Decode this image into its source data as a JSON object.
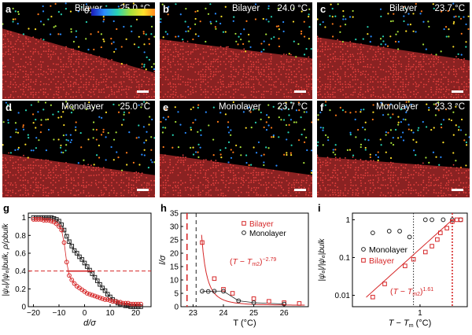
{
  "colorbar": {
    "min_label": "0",
    "max_label": "1",
    "colors": [
      "#1a1ab8",
      "#2a8cff",
      "#28d4b4",
      "#a8e03a",
      "#ffe02a",
      "#ff7a1a",
      "#d21e1e"
    ]
  },
  "panels": [
    {
      "id": "a",
      "label": "a",
      "title": "Bilayer",
      "temp": "25.0 °C",
      "has_colorbar": true,
      "boundary": [
        0.27,
        0.73
      ]
    },
    {
      "id": "b",
      "label": "b",
      "title": "Bilayer",
      "temp": "24.0 °C",
      "has_colorbar": false,
      "boundary": [
        0.38,
        0.58
      ]
    },
    {
      "id": "c",
      "label": "c",
      "title": "Bilayer",
      "temp": "23.7 °C",
      "has_colorbar": false,
      "boundary": [
        0.36,
        0.6
      ]
    },
    {
      "id": "d",
      "label": "d",
      "title": "Monolayer",
      "temp": "25.0 °C",
      "has_colorbar": false,
      "boundary": [
        0.55,
        0.77
      ]
    },
    {
      "id": "e",
      "label": "e",
      "title": "Monolayer",
      "temp": "23.7 °C",
      "has_colorbar": false,
      "boundary": [
        0.55,
        0.77
      ]
    },
    {
      "id": "f",
      "label": "f",
      "title": "Monolayer",
      "temp": "23.3 °C",
      "has_colorbar": false,
      "boundary": [
        0.58,
        0.7
      ]
    }
  ],
  "chart_data": [
    {
      "panel": "g",
      "type": "scatter",
      "xlabel": "d/σ",
      "ylabel": "|ψ6|/|ψ6|bulk, ρ/ρbulk",
      "xlim": [
        -22,
        26
      ],
      "ylim": [
        0,
        1.05
      ],
      "xticks": [
        "−20",
        "−10",
        "0",
        "10",
        "20"
      ],
      "xtick_values": [
        -20,
        -10,
        0,
        10,
        20
      ],
      "yticks": [
        "0",
        "0.2",
        "0.4",
        "0.6",
        "0.8",
        "1"
      ],
      "ytick_values": [
        0,
        0.2,
        0.4,
        0.6,
        0.8,
        1.0
      ],
      "hline": 0.4,
      "series": [
        {
          "marker": "square",
          "color": "#222222",
          "x": [
            -20,
            -19,
            -18,
            -17,
            -16,
            -15,
            -14,
            -13,
            -12,
            -11,
            -10,
            -9,
            -8,
            -7,
            -6,
            -5,
            -4,
            -3,
            -2,
            -1,
            0,
            1,
            2,
            3,
            4,
            5,
            6,
            7,
            8,
            9,
            10,
            11,
            12,
            13,
            14,
            15,
            16,
            17,
            18,
            19,
            20,
            21,
            22
          ],
          "y": [
            1.0,
            1.0,
            1.0,
            1.0,
            1.0,
            1.0,
            1.0,
            1.0,
            0.99,
            0.98,
            0.96,
            0.92,
            0.86,
            0.79,
            0.73,
            0.68,
            0.63,
            0.6,
            0.56,
            0.53,
            0.49,
            0.45,
            0.41,
            0.37,
            0.33,
            0.29,
            0.25,
            0.21,
            0.18,
            0.14,
            0.11,
            0.08,
            0.06,
            0.04,
            0.03,
            0.02,
            0.01,
            0.01,
            0.0,
            0.0,
            0.0,
            0.0,
            0.0
          ]
        },
        {
          "marker": "circle",
          "color": "#d62728",
          "x": [
            -20,
            -19,
            -18,
            -17,
            -16,
            -15,
            -14,
            -13,
            -12,
            -11,
            -10,
            -9,
            -8,
            -7,
            -6,
            -5,
            -4,
            -3,
            -2,
            -1,
            0,
            1,
            2,
            3,
            4,
            5,
            6,
            7,
            8,
            9,
            10,
            11,
            12,
            13,
            14,
            15,
            16,
            17,
            18,
            19,
            20,
            21,
            22
          ],
          "y": [
            0.98,
            0.98,
            0.98,
            0.98,
            0.97,
            0.97,
            0.97,
            0.96,
            0.95,
            0.93,
            0.9,
            0.86,
            0.72,
            0.5,
            0.35,
            0.3,
            0.26,
            0.23,
            0.21,
            0.19,
            0.17,
            0.15,
            0.14,
            0.13,
            0.12,
            0.11,
            0.1,
            0.09,
            0.08,
            0.08,
            0.07,
            0.06,
            0.06,
            0.05,
            0.05,
            0.04,
            0.04,
            0.04,
            0.03,
            0.03,
            0.03,
            0.03,
            0.03
          ]
        }
      ]
    },
    {
      "panel": "h",
      "type": "scatter",
      "xlabel": "T (°C)",
      "ylabel": "l/σ",
      "xlim": [
        22.6,
        26.8
      ],
      "ylim": [
        0,
        35
      ],
      "xticks": [
        "23",
        "24",
        "25",
        "26"
      ],
      "xtick_values": [
        23,
        24,
        25,
        26
      ],
      "yticks": [
        "0",
        "5",
        "10",
        "15",
        "20",
        "25",
        "30",
        "35"
      ],
      "ytick_values": [
        0,
        5,
        10,
        15,
        20,
        25,
        30,
        35
      ],
      "vlines": [
        {
          "x": 22.8,
          "color": "#d62728"
        },
        {
          "x": 23.1,
          "color": "#222222"
        }
      ],
      "fit": {
        "label": "(T − T",
        "sub": "m2",
        "tail": ")",
        "exponent": "−2.79",
        "tm": 22.8
      },
      "series": [
        {
          "name": "Bilayer",
          "marker": "square",
          "color": "#d62728",
          "x": [
            23.3,
            23.7,
            24.0,
            24.3,
            25.0,
            25.5,
            26.0,
            26.5
          ],
          "y": [
            24.0,
            10.5,
            6.5,
            5.0,
            3.0,
            2.0,
            1.5,
            1.2
          ]
        },
        {
          "name": "Monolayer",
          "marker": "circle",
          "color": "#222222",
          "x": [
            23.3,
            23.5,
            23.7,
            24.0,
            24.5,
            25.0,
            26.0
          ],
          "y": [
            5.8,
            5.7,
            5.8,
            5.8,
            2.2,
            1.5,
            1.0
          ]
        }
      ]
    },
    {
      "panel": "i",
      "type": "scatter",
      "xlabel": "T − Tm (°C)",
      "ylabel": "|ψ6|/|ψ6|bulk",
      "xscale": "log",
      "yscale": "log",
      "xlim": [
        0.1,
        5
      ],
      "ylim": [
        0.005,
        1.5
      ],
      "xticks": [
        "1"
      ],
      "xtick_values": [
        1
      ],
      "yticks": [
        "0.01",
        "0.1",
        "1"
      ],
      "ytick_values": [
        0.01,
        0.1,
        1
      ],
      "vlines": [
        {
          "x": 0.8,
          "color": "#222222"
        },
        {
          "x": 3.0,
          "color": "#d62728"
        }
      ],
      "fit": {
        "label": "(T − T",
        "sub": "m2",
        "tail": ")",
        "exponent": "1.61"
      },
      "series": [
        {
          "name": "Monolayer",
          "marker": "circle",
          "color": "#222222",
          "x": [
            0.2,
            0.35,
            0.5,
            0.7,
            1.2,
            1.5,
            2.2,
            3.0,
            4.0
          ],
          "y": [
            0.45,
            0.5,
            0.5,
            0.35,
            1.0,
            1.0,
            1.0,
            1.0,
            1.0
          ]
        },
        {
          "name": "Bilayer",
          "marker": "square",
          "color": "#d62728",
          "x": [
            0.2,
            0.3,
            0.6,
            0.8,
            1.2,
            1.5,
            1.8,
            2.0,
            2.5,
            3.0,
            3.5,
            4.0
          ],
          "y": [
            0.009,
            0.02,
            0.06,
            0.09,
            0.14,
            0.2,
            0.3,
            0.45,
            0.6,
            0.9,
            1.0,
            1.0
          ]
        }
      ]
    }
  ]
}
